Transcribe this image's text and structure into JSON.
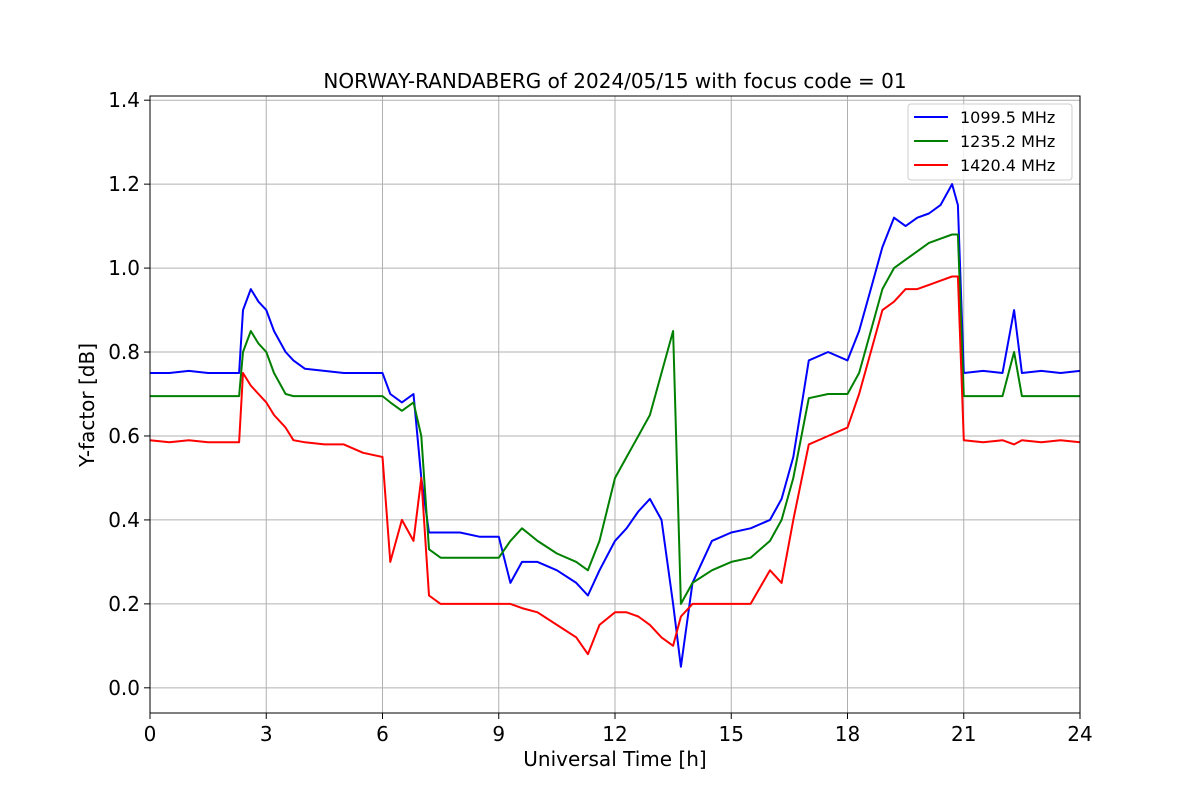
{
  "chart_data": {
    "type": "line",
    "title": "NORWAY-RANDABERG of 2024/05/15 with focus code = 01",
    "xlabel": "Universal Time [h]",
    "ylabel": "Y-factor [dB]",
    "xlim": [
      0,
      24
    ],
    "ylim": [
      -0.06,
      1.41
    ],
    "xticks": [
      0,
      3,
      6,
      9,
      12,
      15,
      18,
      21,
      24
    ],
    "xtick_labels": [
      "0",
      "3",
      "6",
      "9",
      "12",
      "15",
      "18",
      "21",
      "24"
    ],
    "yticks": [
      0.0,
      0.2,
      0.4,
      0.6,
      0.8,
      1.0,
      1.2,
      1.4
    ],
    "ytick_labels": [
      "0.0",
      "0.2",
      "0.4",
      "0.6",
      "0.8",
      "1.0",
      "1.2",
      "1.4"
    ],
    "grid": true,
    "legend_position": "top-right",
    "series": [
      {
        "name": "1099.5 MHz",
        "color": "#0000ff",
        "x": [
          0,
          0.5,
          1.0,
          1.5,
          2.0,
          2.3,
          2.4,
          2.6,
          2.8,
          3.0,
          3.2,
          3.5,
          3.7,
          4.0,
          4.5,
          5.0,
          5.5,
          6.0,
          6.2,
          6.5,
          6.8,
          7.0,
          7.2,
          7.5,
          8.0,
          8.5,
          9.0,
          9.3,
          9.6,
          10.0,
          10.5,
          11.0,
          11.3,
          11.6,
          12.0,
          12.3,
          12.6,
          12.9,
          13.2,
          13.5,
          13.7,
          14.0,
          14.5,
          15.0,
          15.5,
          16.0,
          16.3,
          16.6,
          17.0,
          17.5,
          18.0,
          18.3,
          18.6,
          18.9,
          19.2,
          19.5,
          19.8,
          20.1,
          20.4,
          20.7,
          20.85,
          21.0,
          21.5,
          22.0,
          22.3,
          22.5,
          23.0,
          23.5,
          24.0
        ],
        "y": [
          0.75,
          0.75,
          0.755,
          0.75,
          0.75,
          0.75,
          0.9,
          0.95,
          0.92,
          0.9,
          0.85,
          0.8,
          0.78,
          0.76,
          0.755,
          0.75,
          0.75,
          0.75,
          0.7,
          0.68,
          0.7,
          0.5,
          0.37,
          0.37,
          0.37,
          0.36,
          0.36,
          0.25,
          0.3,
          0.3,
          0.28,
          0.25,
          0.22,
          0.28,
          0.35,
          0.38,
          0.42,
          0.45,
          0.4,
          0.2,
          0.05,
          0.25,
          0.35,
          0.37,
          0.38,
          0.4,
          0.45,
          0.55,
          0.78,
          0.8,
          0.78,
          0.85,
          0.95,
          1.05,
          1.12,
          1.1,
          1.12,
          1.13,
          1.15,
          1.2,
          1.15,
          0.75,
          0.755,
          0.75,
          0.9,
          0.75,
          0.755,
          0.75,
          0.755
        ]
      },
      {
        "name": "1235.2 MHz",
        "color": "#008000",
        "x": [
          0,
          0.5,
          1.0,
          1.5,
          2.0,
          2.3,
          2.4,
          2.6,
          2.8,
          3.0,
          3.2,
          3.5,
          3.7,
          4.0,
          4.5,
          5.0,
          5.5,
          6.0,
          6.2,
          6.5,
          6.8,
          7.0,
          7.2,
          7.5,
          8.0,
          8.5,
          9.0,
          9.3,
          9.6,
          10.0,
          10.5,
          11.0,
          11.3,
          11.6,
          12.0,
          12.3,
          12.6,
          12.9,
          13.2,
          13.5,
          13.7,
          14.0,
          14.5,
          15.0,
          15.5,
          16.0,
          16.3,
          16.6,
          17.0,
          17.5,
          18.0,
          18.3,
          18.6,
          18.9,
          19.2,
          19.5,
          19.8,
          20.1,
          20.4,
          20.7,
          20.85,
          21.0,
          21.5,
          22.0,
          22.3,
          22.5,
          23.0,
          23.5,
          24.0
        ],
        "y": [
          0.695,
          0.695,
          0.695,
          0.695,
          0.695,
          0.695,
          0.8,
          0.85,
          0.82,
          0.8,
          0.75,
          0.7,
          0.695,
          0.695,
          0.695,
          0.695,
          0.695,
          0.695,
          0.68,
          0.66,
          0.68,
          0.6,
          0.33,
          0.31,
          0.31,
          0.31,
          0.31,
          0.35,
          0.38,
          0.35,
          0.32,
          0.3,
          0.28,
          0.35,
          0.5,
          0.55,
          0.6,
          0.65,
          0.75,
          0.85,
          0.2,
          0.25,
          0.28,
          0.3,
          0.31,
          0.35,
          0.4,
          0.5,
          0.69,
          0.7,
          0.7,
          0.75,
          0.85,
          0.95,
          1.0,
          1.02,
          1.04,
          1.06,
          1.07,
          1.08,
          1.08,
          0.695,
          0.695,
          0.695,
          0.8,
          0.695,
          0.695,
          0.695,
          0.695
        ]
      },
      {
        "name": "1420.4 MHz",
        "color": "#ff0000",
        "x": [
          0,
          0.5,
          1.0,
          1.5,
          2.0,
          2.3,
          2.4,
          2.6,
          2.8,
          3.0,
          3.2,
          3.5,
          3.7,
          4.0,
          4.5,
          5.0,
          5.5,
          6.0,
          6.2,
          6.5,
          6.8,
          7.0,
          7.2,
          7.5,
          8.0,
          8.5,
          9.0,
          9.3,
          9.6,
          10.0,
          10.5,
          11.0,
          11.3,
          11.6,
          12.0,
          12.3,
          12.6,
          12.9,
          13.2,
          13.5,
          13.7,
          14.0,
          14.5,
          15.0,
          15.5,
          16.0,
          16.3,
          16.6,
          17.0,
          17.5,
          18.0,
          18.3,
          18.6,
          18.9,
          19.2,
          19.5,
          19.8,
          20.1,
          20.4,
          20.7,
          20.85,
          21.0,
          21.5,
          22.0,
          22.3,
          22.5,
          23.0,
          23.5,
          24.0
        ],
        "y": [
          0.59,
          0.585,
          0.59,
          0.585,
          0.585,
          0.585,
          0.75,
          0.72,
          0.7,
          0.68,
          0.65,
          0.62,
          0.59,
          0.585,
          0.58,
          0.58,
          0.56,
          0.55,
          0.3,
          0.4,
          0.35,
          0.5,
          0.22,
          0.2,
          0.2,
          0.2,
          0.2,
          0.2,
          0.19,
          0.18,
          0.15,
          0.12,
          0.08,
          0.15,
          0.18,
          0.18,
          0.17,
          0.15,
          0.12,
          0.1,
          0.17,
          0.2,
          0.2,
          0.2,
          0.2,
          0.28,
          0.25,
          0.4,
          0.58,
          0.6,
          0.62,
          0.7,
          0.8,
          0.9,
          0.92,
          0.95,
          0.95,
          0.96,
          0.97,
          0.98,
          0.98,
          0.59,
          0.585,
          0.59,
          0.58,
          0.59,
          0.585,
          0.59,
          0.585
        ]
      }
    ]
  }
}
